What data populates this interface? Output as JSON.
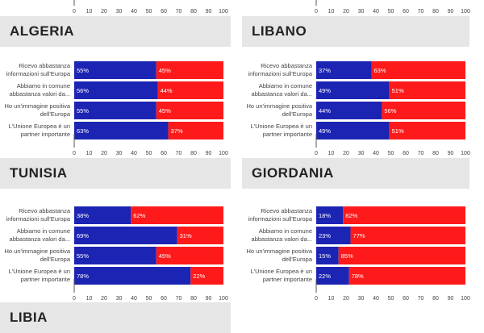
{
  "axis_ticks": [
    "0",
    "10",
    "20",
    "30",
    "40",
    "50",
    "60",
    "70",
    "80",
    "90",
    "100"
  ],
  "colors": {
    "agree": "#1c24b4",
    "disagree": "#fe1a1a",
    "title_bg": "#e6e6e6"
  },
  "panels": [
    {
      "title": "ALGERIA"
    },
    {
      "title": "LIBANO"
    },
    {
      "title": "TUNISIA"
    },
    {
      "title": "GIORDANIA"
    },
    {
      "title": "LIBIA"
    }
  ],
  "chart_data": [
    {
      "type": "bar",
      "stacked": true,
      "orientation": "horizontal",
      "title": "ALGERIA",
      "categories": [
        [
          "Ricevo abbastanza",
          "informazioni sull'Europa"
        ],
        [
          "Abbiamo in comune",
          "abbastanza valori da..."
        ],
        [
          "Ho un'immagine positiva",
          "dell'Europa"
        ],
        [
          "L'Unione Europea è un",
          "partner importante"
        ]
      ],
      "series": [
        {
          "values": [
            55,
            56,
            55,
            63
          ],
          "labels": [
            "55%",
            "56%",
            "55%",
            "63%"
          ]
        },
        {
          "values": [
            45,
            44,
            45,
            37
          ],
          "labels": [
            "45%",
            "44%",
            "45%",
            "37%"
          ]
        }
      ],
      "xlim": [
        0,
        100
      ]
    },
    {
      "type": "bar",
      "stacked": true,
      "orientation": "horizontal",
      "title": "LIBANO",
      "categories": [
        [
          "Ricevo abbastanza",
          "informazioni sull'Europa"
        ],
        [
          "Abbiamo in comune",
          "abbastanza valori da..."
        ],
        [
          "Ho un'immagine positiva",
          "dell'Europa"
        ],
        [
          "L'Unione Europea è un",
          "partner importante"
        ]
      ],
      "series": [
        {
          "values": [
            37,
            49,
            44,
            49
          ],
          "labels": [
            "37%",
            "49%",
            "44%",
            "49%"
          ]
        },
        {
          "values": [
            63,
            51,
            56,
            51
          ],
          "labels": [
            "63%",
            "51%",
            "56%",
            "51%"
          ]
        }
      ],
      "xlim": [
        0,
        100
      ]
    },
    {
      "type": "bar",
      "stacked": true,
      "orientation": "horizontal",
      "title": "TUNISIA",
      "categories": [
        [
          "Ricevo abbastanza",
          "informazioni sull'Europa"
        ],
        [
          "Abbiamo in comune",
          "abbastanza valori da..."
        ],
        [
          "Ho un'immagine positiva",
          "dell'Europa"
        ],
        [
          "L'Unione Europea è un",
          "partner importante"
        ]
      ],
      "series": [
        {
          "values": [
            38,
            69,
            55,
            78
          ],
          "labels": [
            "38%",
            "69%",
            "55%",
            "78%"
          ]
        },
        {
          "values": [
            62,
            31,
            45,
            22
          ],
          "labels": [
            "62%",
            "31%",
            "45%",
            "22%"
          ]
        }
      ],
      "xlim": [
        0,
        100
      ]
    },
    {
      "type": "bar",
      "stacked": true,
      "orientation": "horizontal",
      "title": "GIORDANIA",
      "categories": [
        [
          "Ricevo abbastanza",
          "informazioni sull'Europa"
        ],
        [
          "Abbiamo in comune",
          "abbastanza valori da..."
        ],
        [
          "Ho un'immagine positiva",
          "dell'Europa"
        ],
        [
          "L'Unione Europea è un",
          "partner importante"
        ]
      ],
      "series": [
        {
          "values": [
            18,
            23,
            15,
            22
          ],
          "labels": [
            "18%",
            "23%",
            "15%",
            "22%"
          ]
        },
        {
          "values": [
            82,
            77,
            85,
            78
          ],
          "labels": [
            "82%",
            "77%",
            "85%",
            "78%"
          ]
        }
      ],
      "xlim": [
        0,
        100
      ]
    }
  ]
}
